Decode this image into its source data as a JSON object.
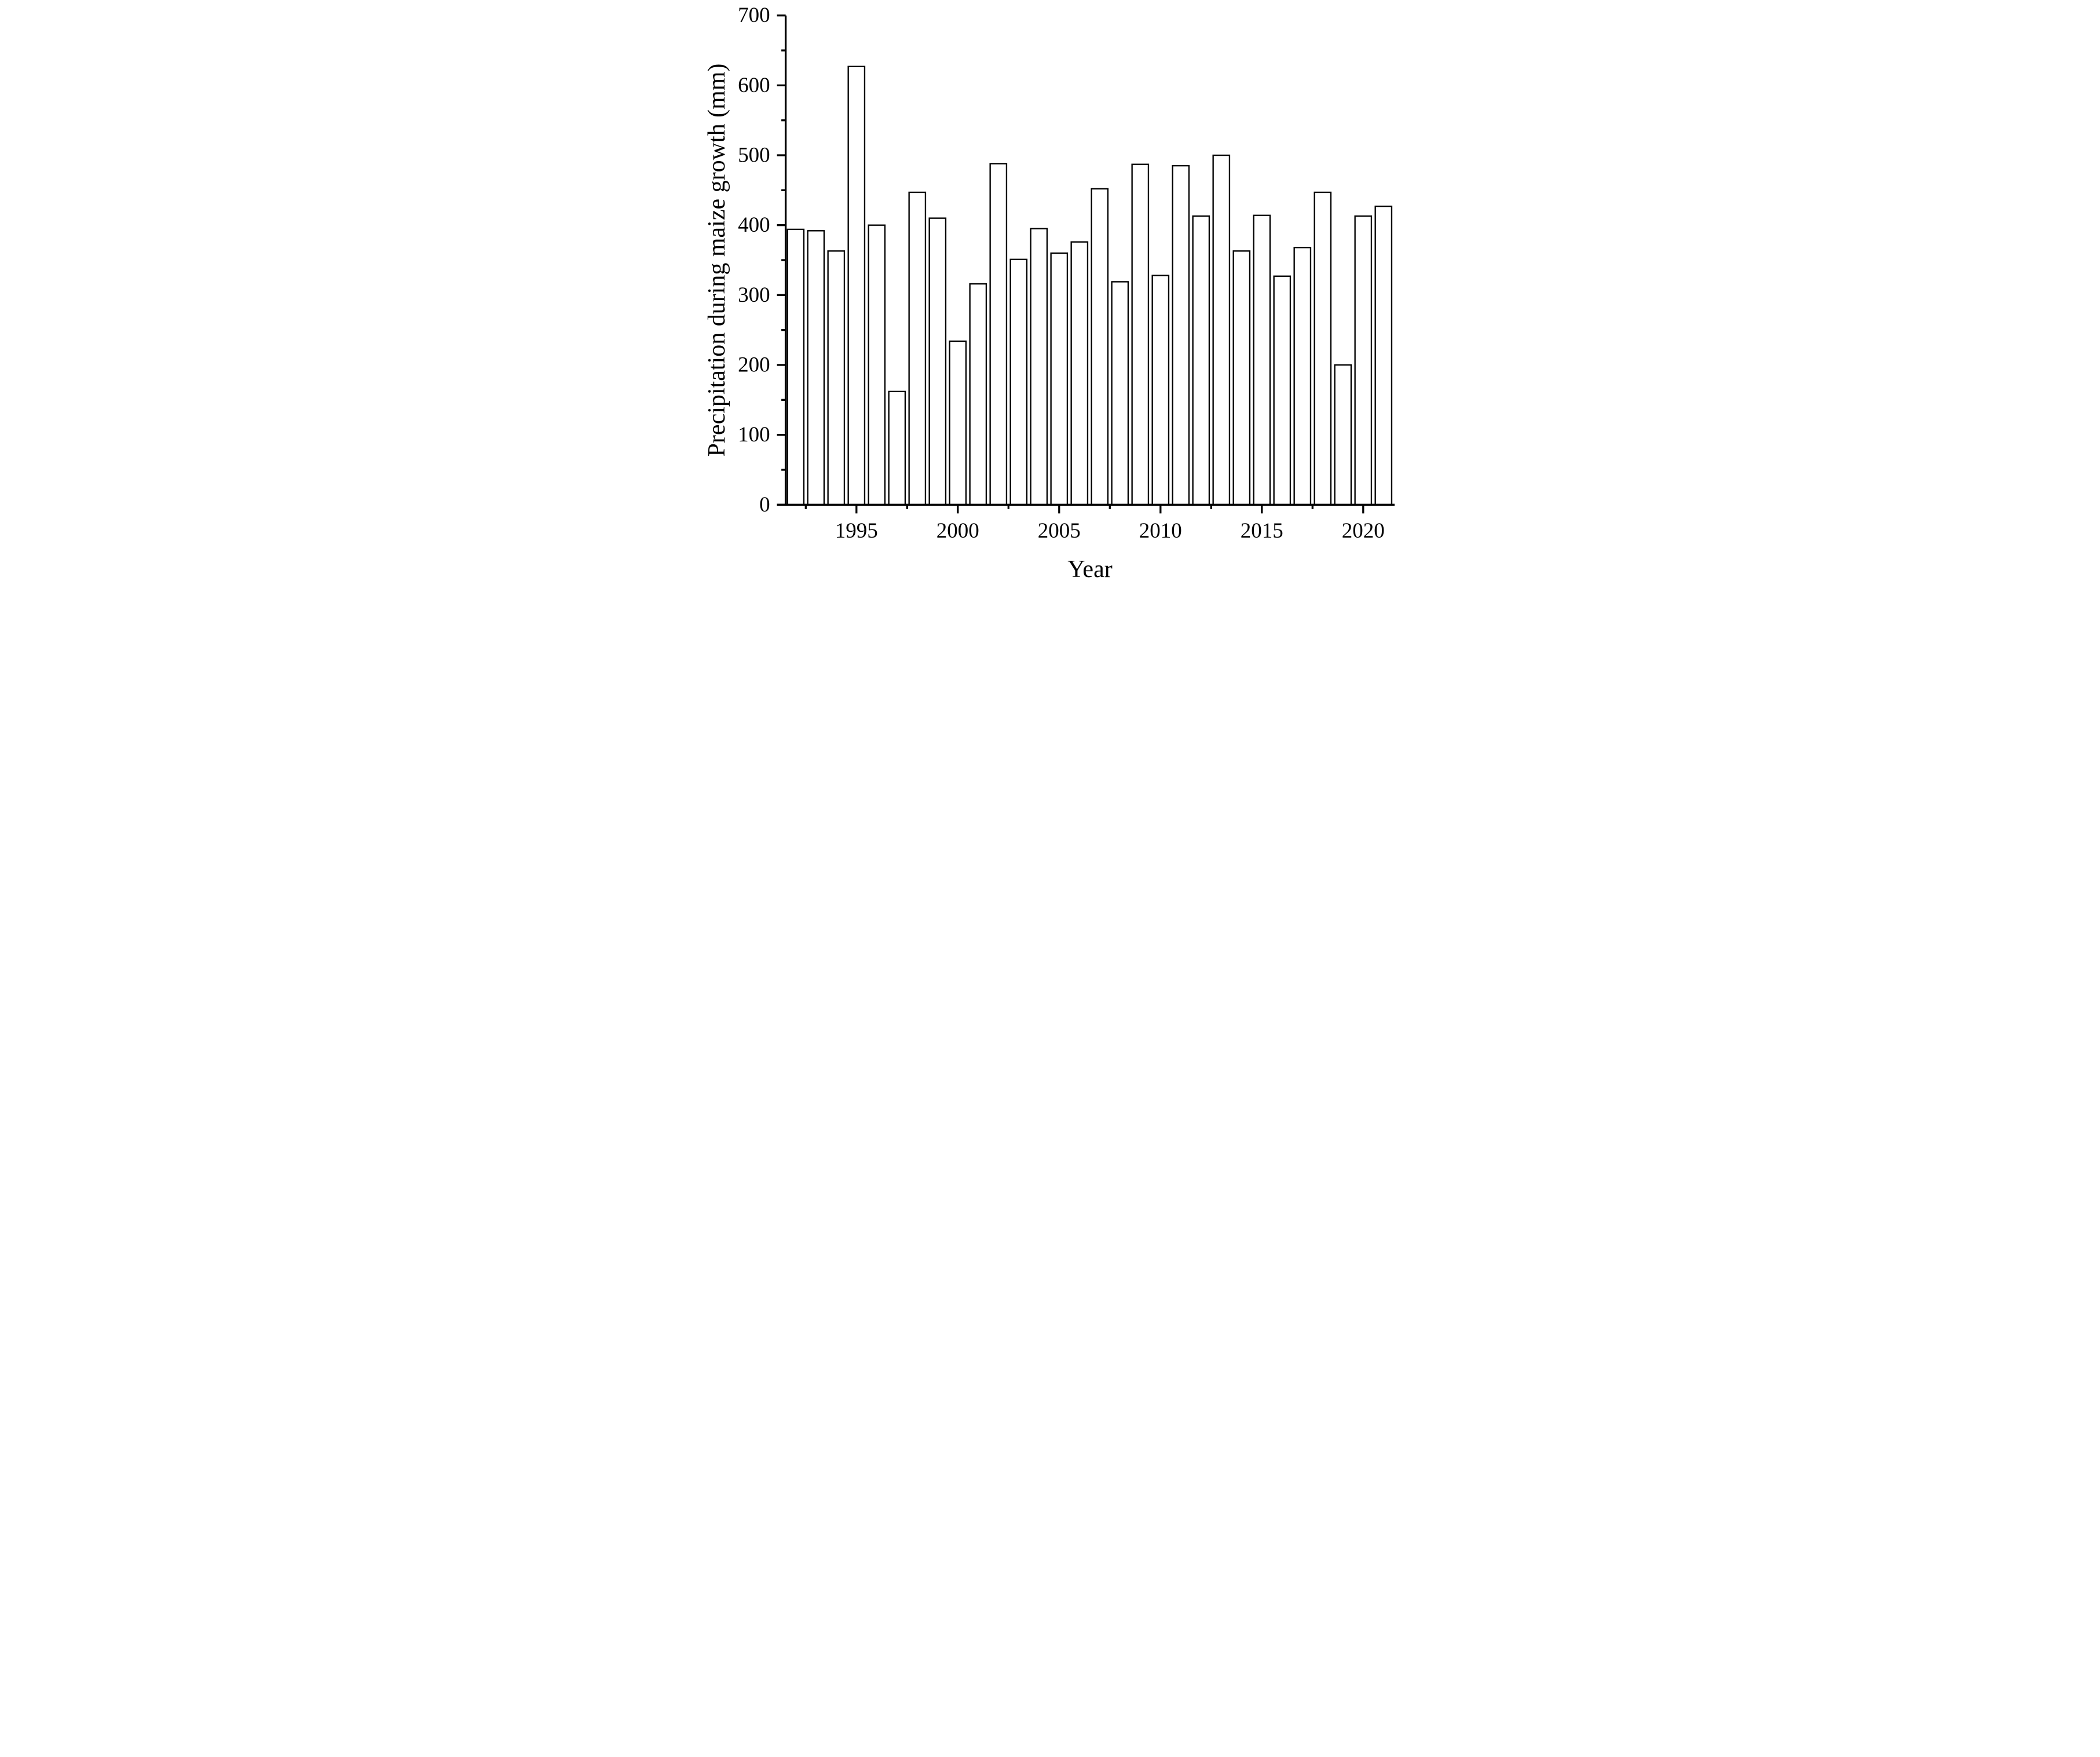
{
  "figure": {
    "background_color": "#ffffff",
    "ink_color": "#000000",
    "bar_fill_color": "#ffffff",
    "bar_stroke_color": "#000000"
  },
  "chart_data": {
    "type": "bar",
    "title": "",
    "xlabel": "Year",
    "ylabel": "Precipitation during maize growth (mm)",
    "categories": [
      1992,
      1993,
      1994,
      1995,
      1996,
      1997,
      1998,
      1999,
      2000,
      2001,
      2002,
      2003,
      2004,
      2005,
      2006,
      2007,
      2008,
      2009,
      2010,
      2011,
      2012,
      2013,
      2014,
      2015,
      2016,
      2017,
      2018,
      2019,
      2020,
      2021
    ],
    "values": [
      394,
      392,
      363,
      627,
      400,
      162,
      447,
      410,
      234,
      316,
      488,
      351,
      395,
      360,
      376,
      452,
      319,
      487,
      328,
      485,
      413,
      500,
      363,
      414,
      327,
      368,
      447,
      200,
      413,
      427
    ],
    "ylim": [
      0,
      700
    ],
    "y_major_ticks": [
      0,
      100,
      200,
      300,
      400,
      500,
      600,
      700
    ],
    "y_major_tick_labels": [
      "0",
      "100",
      "200",
      "300",
      "400",
      "500",
      "600",
      "700"
    ],
    "y_minor_ticks": [
      50,
      150,
      250,
      350,
      450,
      550,
      650
    ],
    "x_major_ticks": [
      1995,
      2000,
      2005,
      2010,
      2015,
      2020
    ],
    "x_major_tick_labels": [
      "1995",
      "2000",
      "2005",
      "2010",
      "2015",
      "2020"
    ],
    "x_minor_ticks": [
      1992.5,
      1997.5,
      2002.5,
      2007.5,
      2012.5,
      2017.5
    ],
    "grid": "off",
    "legend": "none",
    "bar_style": "outlined-open-bars"
  }
}
